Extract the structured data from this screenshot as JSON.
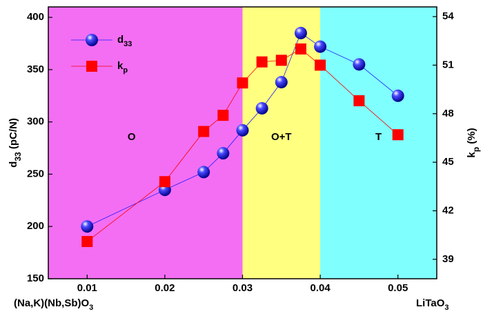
{
  "chart_data": {
    "type": "line",
    "xlim": [
      0.005,
      0.055
    ],
    "xticks": [
      0.01,
      0.02,
      0.03,
      0.04,
      0.05
    ],
    "ylim": [
      150,
      410
    ],
    "yticks": [
      150,
      200,
      250,
      300,
      350,
      400
    ],
    "y2lim": [
      37.8,
      54.6
    ],
    "y2ticks": [
      39,
      42,
      45,
      48,
      51,
      54
    ],
    "ylabel": [
      "d",
      "33",
      " (pC/N)"
    ],
    "y2label": [
      "k",
      "p",
      " (%)"
    ],
    "x_left_label": [
      "(Na,K)(Nb,Sb)O",
      "3"
    ],
    "x_right_label": [
      "LiTaO",
      "3"
    ],
    "legend": "upper left",
    "regions": [
      {
        "label": "O",
        "from": 0.005,
        "to": 0.03,
        "color": "#f36ef3"
      },
      {
        "label": "O+T",
        "from": 0.03,
        "to": 0.04,
        "color": "#ffff80"
      },
      {
        "label": "T",
        "from": 0.04,
        "to": 0.055,
        "color": "#80ffff"
      }
    ],
    "series": [
      {
        "name": [
          "d",
          "33"
        ],
        "color": "#1a1aff",
        "marker": "sphere",
        "x": [
          0.01,
          0.02,
          0.025,
          0.0275,
          0.03,
          0.0325,
          0.035,
          0.0375,
          0.04,
          0.045,
          0.05
        ],
        "values": [
          200,
          235,
          252,
          270,
          292,
          313,
          338,
          385,
          372,
          355,
          325
        ]
      },
      {
        "name": [
          "k",
          "p"
        ],
        "color": "#ff0000",
        "marker": "square",
        "axis": "y2",
        "x": [
          0.01,
          0.02,
          0.025,
          0.0275,
          0.03,
          0.0325,
          0.035,
          0.0375,
          0.04,
          0.045,
          0.05
        ],
        "values": [
          40.1,
          43.8,
          46.9,
          47.9,
          49.9,
          51.2,
          51.3,
          52.0,
          51.0,
          48.8,
          46.7
        ]
      }
    ]
  }
}
